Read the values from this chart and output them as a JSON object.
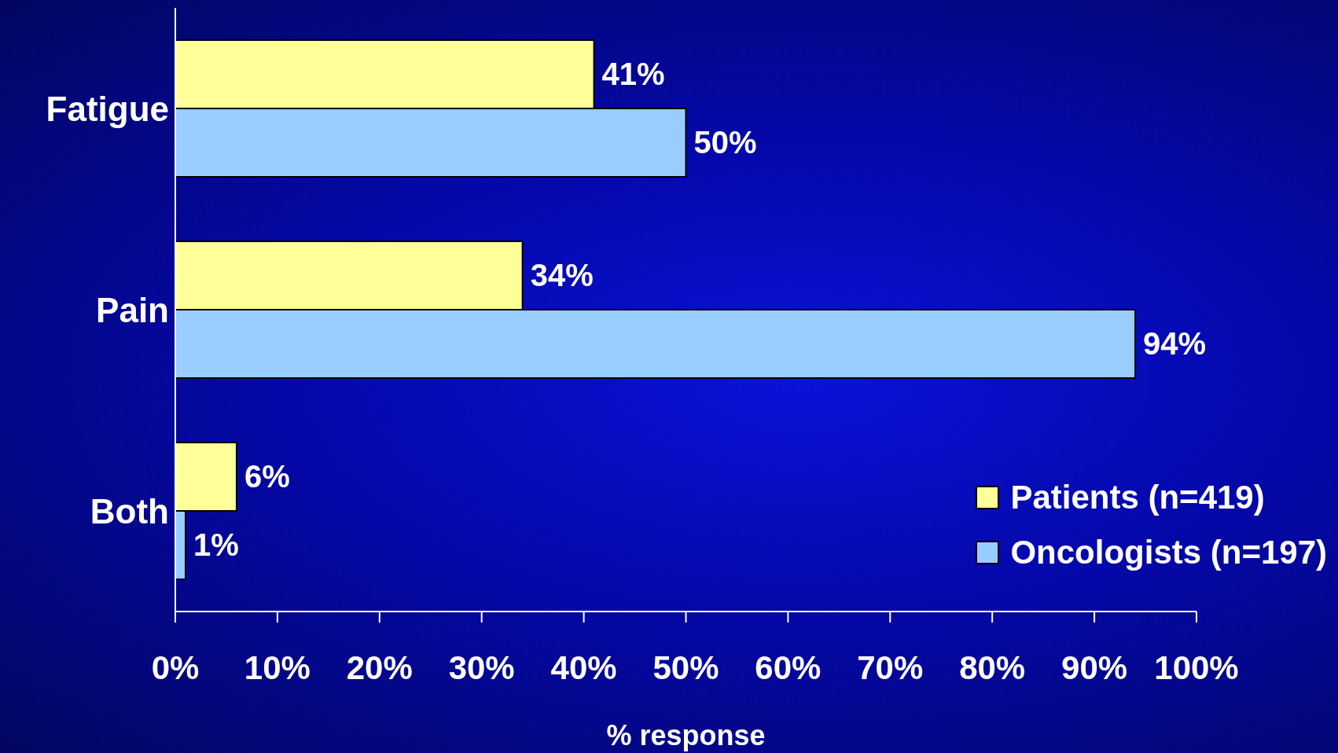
{
  "chart_data": {
    "type": "bar",
    "orientation": "horizontal",
    "xlabel": "% response",
    "categories": [
      "Fatigue",
      "Pain",
      "Both"
    ],
    "series": [
      {
        "name": "Patients (n=419)",
        "color": "#ffff99",
        "values": [
          41,
          34,
          6
        ],
        "value_labels": [
          "41%",
          "34%",
          "6%"
        ]
      },
      {
        "name": "Oncologists (n=197)",
        "color": "#99ccff",
        "values": [
          50,
          94,
          1
        ],
        "value_labels": [
          "50%",
          "94%",
          "1%"
        ]
      }
    ],
    "xlim": [
      0,
      100
    ],
    "xticks": [
      {
        "value": 0,
        "label": "0%"
      },
      {
        "value": 10,
        "label": "10%"
      },
      {
        "value": 20,
        "label": "20%"
      },
      {
        "value": 30,
        "label": "30%"
      },
      {
        "value": 40,
        "label": "40%"
      },
      {
        "value": 50,
        "label": "50%"
      },
      {
        "value": 60,
        "label": "60%"
      },
      {
        "value": 70,
        "label": "70%"
      },
      {
        "value": 80,
        "label": "80%"
      },
      {
        "value": 90,
        "label": "90%"
      },
      {
        "value": 100,
        "label": "100%"
      }
    ],
    "grid": false,
    "legend": "bottom right"
  }
}
